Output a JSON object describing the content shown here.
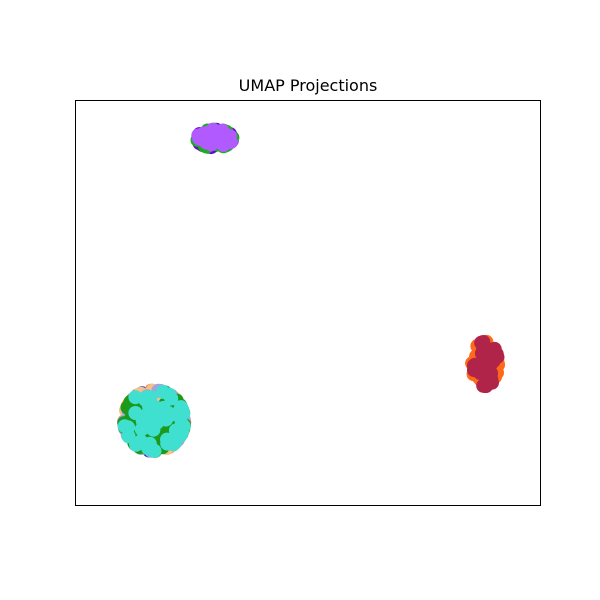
{
  "chart_data": {
    "type": "scatter",
    "title": "UMAP Projections",
    "xlabel": "",
    "ylabel": "",
    "xlim": [
      0,
      10
    ],
    "ylim": [
      0,
      10
    ],
    "axis_ticks": "none",
    "grid": false,
    "legend": "none",
    "clusters": [
      {
        "colors": [
          "#2233cc",
          "#ff6a1a",
          "#f5c08a",
          "#9aa6e0",
          "#1c9a1c",
          "#40e0d0"
        ],
        "center": [
          1.7,
          2.1
        ],
        "spread": [
          0.65,
          0.75
        ],
        "points_per_color": 45
      },
      {
        "colors": [
          "#6a00d6",
          "#18b018",
          "#b05aff"
        ],
        "center": [
          3.0,
          9.05
        ],
        "spread": [
          0.38,
          0.22
        ],
        "points_per_color": 30
      },
      {
        "colors": [
          "#ff6a1a",
          "#b0244a"
        ],
        "center": [
          8.8,
          3.5
        ],
        "spread": [
          0.28,
          0.55
        ],
        "points_per_color": 35
      }
    ]
  }
}
